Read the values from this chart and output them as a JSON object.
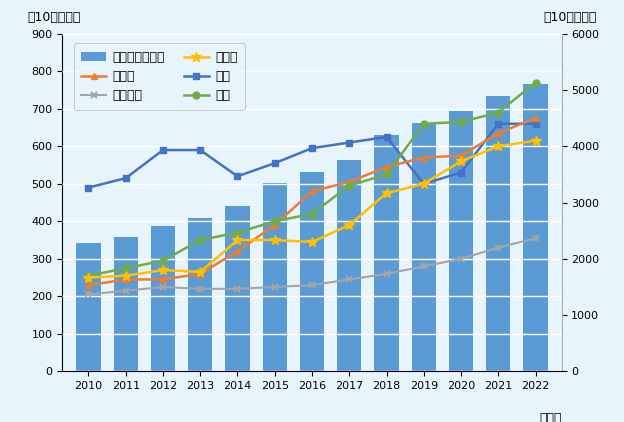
{
  "years": [
    2010,
    2011,
    2012,
    2013,
    2014,
    2015,
    2016,
    2017,
    2018,
    2019,
    2020,
    2021,
    2022
  ],
  "world_total": [
    2280,
    2395,
    2590,
    2730,
    2940,
    3350,
    3540,
    3750,
    4200,
    4420,
    4620,
    4900,
    5100
  ],
  "japan": [
    255,
    275,
    295,
    350,
    370,
    400,
    420,
    495,
    525,
    660,
    665,
    690,
    770
  ],
  "canada": [
    230,
    245,
    245,
    260,
    320,
    390,
    480,
    505,
    545,
    570,
    575,
    635,
    675
  ],
  "uk": [
    490,
    515,
    590,
    590,
    520,
    555,
    595,
    610,
    625,
    500,
    530,
    660,
    660
  ],
  "germany": [
    250,
    255,
    270,
    265,
    350,
    350,
    345,
    390,
    475,
    500,
    560,
    600,
    615
  ],
  "france": [
    205,
    215,
    225,
    220,
    220,
    225,
    230,
    245,
    260,
    280,
    300,
    330,
    355
  ],
  "bar_color": "#5B9BD5",
  "japan_color": "#70AD47",
  "canada_color": "#ED7D31",
  "uk_color": "#4472C4",
  "germany_color": "#FFC000",
  "france_color": "#A5A5A5",
  "title_left": "（10億ドル）",
  "title_right": "（10億ドル）",
  "xlabel": "（年）",
  "ylim_left": [
    0,
    900
  ],
  "ylim_right": [
    0,
    6000
  ],
  "yticks_left": [
    0,
    100,
    200,
    300,
    400,
    500,
    600,
    700,
    800,
    900
  ],
  "yticks_right": [
    0,
    1000,
    2000,
    3000,
    4000,
    5000,
    6000
  ],
  "legend_items": [
    "世界計（右軸）",
    "カナダ",
    "フランス",
    "ドイツ",
    "英国",
    "日本"
  ],
  "background_color": "#E8F4FC"
}
